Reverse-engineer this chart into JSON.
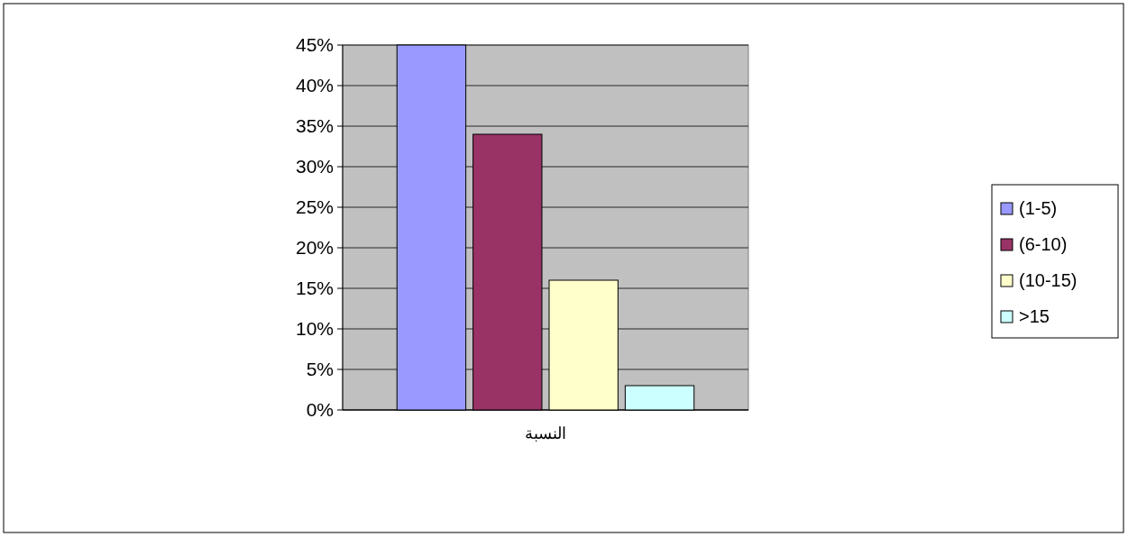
{
  "chart_data": {
    "type": "bar",
    "categories": [
      "النسبة"
    ],
    "series": [
      {
        "name": "(1-5)",
        "color": "#9999ff",
        "values": [
          45
        ]
      },
      {
        "name": "(6-10)",
        "color": "#993366",
        "values": [
          34
        ]
      },
      {
        "name": "(10-15)",
        "color": "#ffffcc",
        "values": [
          16
        ]
      },
      {
        "name": ">15",
        "color": "#ccffff",
        "values": [
          3
        ]
      }
    ],
    "ylim": [
      0,
      45
    ],
    "yticks": [
      {
        "value": 0,
        "label": "0%"
      },
      {
        "value": 5,
        "label": "5%"
      },
      {
        "value": 10,
        "label": "10%"
      },
      {
        "value": 15,
        "label": "15%"
      },
      {
        "value": 20,
        "label": "20%"
      },
      {
        "value": 25,
        "label": "25%"
      },
      {
        "value": 30,
        "label": "30%"
      },
      {
        "value": 35,
        "label": "35%"
      },
      {
        "value": 40,
        "label": "40%"
      },
      {
        "value": 45,
        "label": "45%"
      }
    ],
    "grid": "y",
    "legend": "right"
  }
}
